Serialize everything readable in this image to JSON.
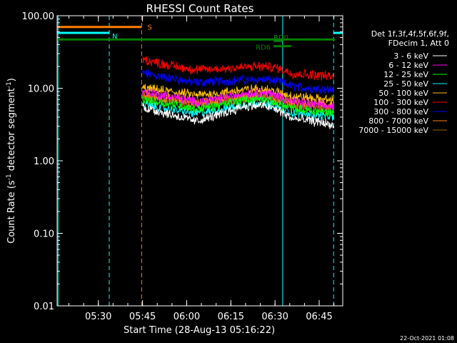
{
  "chart_data": {
    "type": "line",
    "title": "RHESSI Count Rates",
    "xlabel": "Start Time (28-Aug-13 05:16:22)",
    "ylabel_parts": [
      "Count Rate (s",
      "-1",
      " detector segment",
      "-1",
      ")"
    ],
    "yscale": "log",
    "ylim": [
      0.01,
      100.0
    ],
    "xlim_minutes_after_0516": [
      0,
      97
    ],
    "y_ticks": [
      {
        "value": 100.0,
        "label": "100.00"
      },
      {
        "value": 10.0,
        "label": "10.00"
      },
      {
        "value": 1.0,
        "label": "1.00"
      },
      {
        "value": 0.1,
        "label": "0.10"
      },
      {
        "value": 0.01,
        "label": "0.01"
      }
    ],
    "x_ticks": [
      {
        "minute": 14,
        "label": "05:30"
      },
      {
        "minute": 29,
        "label": "05:45"
      },
      {
        "minute": 44,
        "label": "06:00"
      },
      {
        "minute": 59,
        "label": "06:15"
      },
      {
        "minute": 74,
        "label": "06:30"
      },
      {
        "minute": 89,
        "label": "06:45"
      }
    ],
    "legend": {
      "header": [
        "Det 1f,3f,4f,5f,6f,9f,",
        "FDecim 1, Att 0"
      ],
      "position": "right"
    },
    "series": [
      {
        "name": "3 - 6 keV",
        "color": "#ffffff",
        "x": [
          29,
          40,
          47,
          55,
          63,
          70,
          75,
          80,
          90,
          94
        ],
        "values": [
          5.5,
          4.2,
          3.5,
          4.3,
          5.6,
          5.8,
          5.0,
          3.8,
          3.4,
          3.0
        ]
      },
      {
        "name": "6 - 12 keV",
        "color": "#ff00ff",
        "x": [
          29,
          40,
          47,
          55,
          63,
          70,
          75,
          80,
          90,
          94
        ],
        "values": [
          9.0,
          7.5,
          6.5,
          7.2,
          8.5,
          8.8,
          7.8,
          6.5,
          5.8,
          5.5
        ]
      },
      {
        "name": "12 - 25 keV",
        "color": "#00ff00",
        "x": [
          29,
          40,
          47,
          55,
          63,
          70,
          75,
          80,
          90,
          94
        ],
        "values": [
          7.0,
          6.0,
          5.2,
          5.8,
          7.0,
          7.2,
          6.2,
          5.2,
          4.8,
          4.5
        ]
      },
      {
        "name": "25 - 50 keV",
        "color": "#00ffff",
        "x": [
          29,
          40,
          47,
          55,
          63,
          70,
          75,
          80,
          90,
          94
        ],
        "values": [
          6.0,
          5.0,
          4.5,
          5.0,
          6.0,
          6.5,
          5.5,
          4.6,
          4.2,
          4.0
        ]
      },
      {
        "name": "50 - 100 keV",
        "color": "#ffbf00",
        "x": [
          29,
          40,
          47,
          55,
          63,
          70,
          75,
          80,
          90,
          94
        ],
        "values": [
          10.0,
          8.8,
          8.0,
          8.5,
          9.5,
          9.8,
          8.8,
          7.8,
          7.0,
          6.8
        ]
      },
      {
        "name": "100 - 300 keV",
        "color": "#ff0000",
        "x": [
          29,
          40,
          47,
          55,
          63,
          70,
          75,
          80,
          90,
          94
        ],
        "values": [
          25.0,
          20.0,
          18.0,
          18.5,
          19.5,
          20.0,
          19.0,
          16.0,
          15.0,
          14.5
        ]
      },
      {
        "name": "300 - 800 keV",
        "color": "#0000ff",
        "x": [
          29,
          40,
          47,
          55,
          63,
          70,
          75,
          80,
          90,
          94
        ],
        "values": [
          16.0,
          13.5,
          12.0,
          12.5,
          13.0,
          13.2,
          12.5,
          10.5,
          9.8,
          9.5
        ]
      },
      {
        "name": "800 - 7000 keV",
        "color": "#ff8000",
        "x": [
          29,
          40,
          47,
          55,
          63,
          70,
          75,
          80,
          90,
          94
        ],
        "values": [
          8.0,
          7.0,
          6.3,
          6.8,
          7.8,
          8.0,
          7.2,
          6.2,
          5.8,
          5.5
        ]
      },
      {
        "name": "7000 - 15000 keV",
        "color": "#a06000",
        "x": [
          29,
          40,
          47,
          55,
          63,
          70,
          75,
          80,
          90,
          94
        ],
        "values": [
          7.5,
          6.5,
          5.8,
          6.3,
          7.3,
          7.5,
          6.7,
          5.8,
          5.3,
          5.0
        ]
      }
    ],
    "vertical_markers": [
      {
        "minute": 0.3,
        "color": "#00ffff",
        "style": "solid"
      },
      {
        "minute": 17.7,
        "color": "#00ffff",
        "style": "dashed"
      },
      {
        "minute": 28.7,
        "color": "#ff8000",
        "style": "dashed"
      },
      {
        "minute": 76.6,
        "color": "#00ffff",
        "style": "solid"
      },
      {
        "minute": 93.9,
        "color": "#00ffff",
        "style": "dashed"
      }
    ],
    "flag_bars": [
      {
        "label": "S",
        "color": "#ff8000",
        "x_start": 0,
        "x_end": 28.7,
        "y": 70
      },
      {
        "label": "N",
        "color": "#00ffff",
        "x_start": 0,
        "x_end": 17.7,
        "y": 58
      },
      {
        "label": "N",
        "color": "#00ffff",
        "x_start": 93.9,
        "x_end": 97,
        "y": 58,
        "hide_label": true
      },
      {
        "label": "",
        "color": "#008000",
        "x_start": 0,
        "x_end": 94.3,
        "y": 47
      },
      {
        "label": "RD0",
        "color": "#008000",
        "x_start": 73.5,
        "x_end": 76.5,
        "y": 45
      },
      {
        "label": "RD6",
        "color": "#008000",
        "x_start": 73.5,
        "x_end": 79.5,
        "y": 38
      }
    ]
  },
  "footer_timestamp": "22-Oct-2021 01:08"
}
